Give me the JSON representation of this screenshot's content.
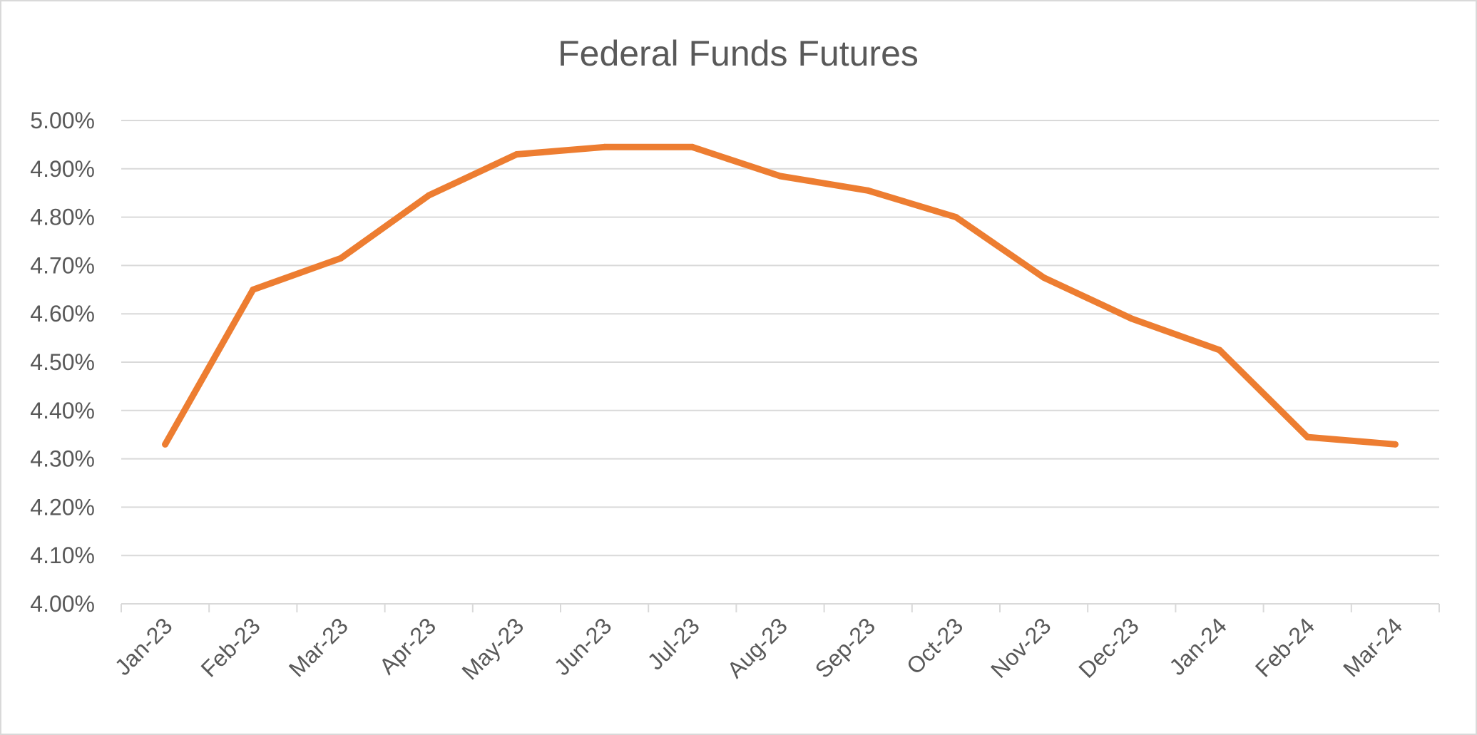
{
  "chart_data": {
    "type": "line",
    "title": "Federal Funds Futures",
    "xlabel": "",
    "ylabel": "",
    "categories": [
      "Jan-23",
      "Feb-23",
      "Mar-23",
      "Apr-23",
      "May-23",
      "Jun-23",
      "Jul-23",
      "Aug-23",
      "Sep-23",
      "Oct-23",
      "Nov-23",
      "Dec-23",
      "Jan-24",
      "Feb-24",
      "Mar-24"
    ],
    "series": [
      {
        "values": [
          4.33,
          4.65,
          4.715,
          4.845,
          4.93,
          4.945,
          4.945,
          4.885,
          4.855,
          4.8,
          4.675,
          4.59,
          4.525,
          4.345,
          4.33
        ],
        "color": "#ed7d31"
      }
    ],
    "ylim": [
      4.0,
      5.0
    ],
    "yticks": [
      "4.00%",
      "4.10%",
      "4.20%",
      "4.30%",
      "4.40%",
      "4.50%",
      "4.60%",
      "4.70%",
      "4.80%",
      "4.90%",
      "5.00%"
    ],
    "grid": true,
    "legend": "none"
  }
}
